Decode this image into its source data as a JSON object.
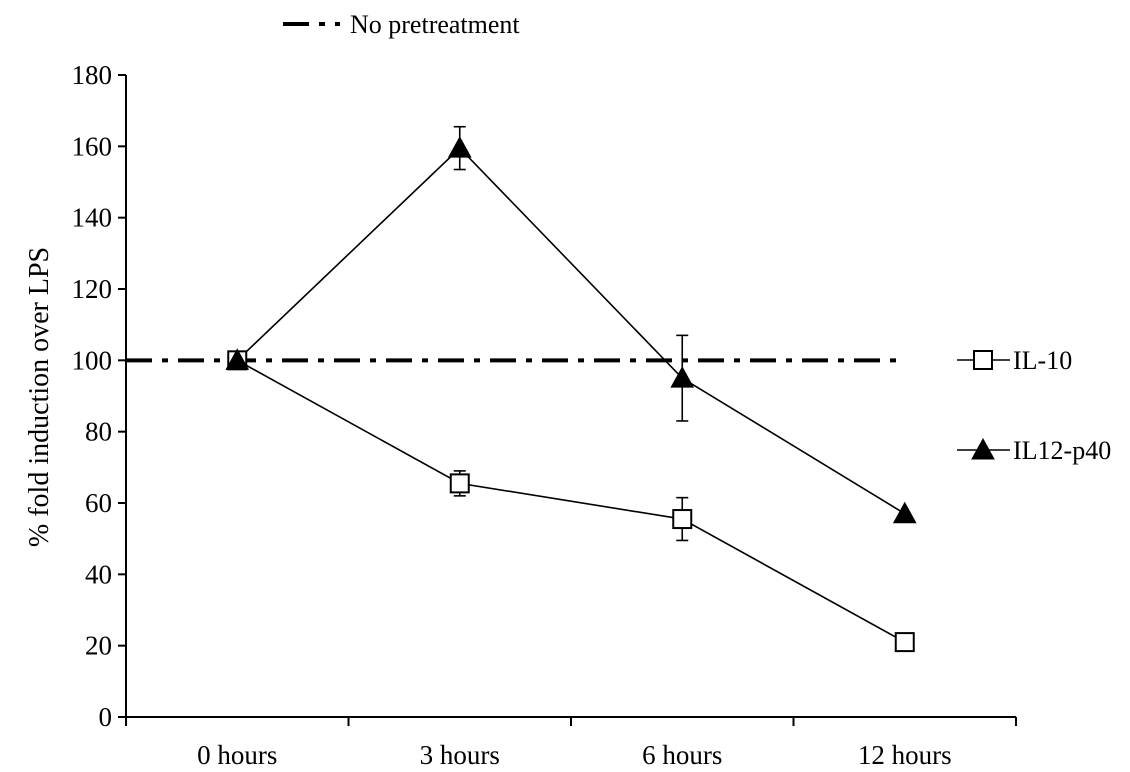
{
  "chart_data": {
    "type": "line",
    "title": "",
    "xlabel": "",
    "ylabel": "% fold induction over LPS",
    "categories": [
      "0 hours",
      "3 hours",
      "6 hours",
      "12 hours"
    ],
    "ylim": [
      0,
      180
    ],
    "yticks": [
      0,
      20,
      40,
      60,
      80,
      100,
      120,
      140,
      160,
      180
    ],
    "grid": false,
    "series": [
      {
        "name": "IL-10",
        "marker": "open-square",
        "values": [
          100,
          65.5,
          55.5,
          21
        ],
        "errors": [
          0,
          3.5,
          6,
          0
        ]
      },
      {
        "name": "IL12-p40",
        "marker": "filled-triangle",
        "values": [
          100,
          159.5,
          95,
          57
        ],
        "errors": [
          0,
          6,
          12,
          0
        ]
      }
    ],
    "reference_lines": [
      {
        "name": "No pretreatment",
        "y": 100,
        "style": "dash-dot"
      }
    ],
    "legend": {
      "top": "No pretreatment",
      "right": [
        "IL-10",
        "IL12-p40"
      ]
    }
  }
}
